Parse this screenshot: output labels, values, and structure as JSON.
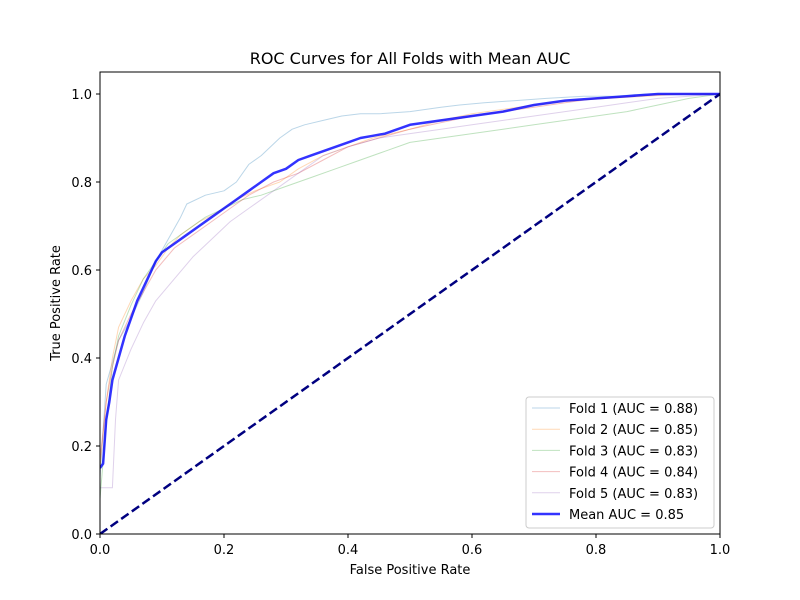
{
  "chart_data": {
    "type": "line",
    "title": "ROC Curves for All Folds with Mean AUC",
    "xlabel": "False Positive Rate",
    "ylabel": "True Positive Rate",
    "xlim": [
      0.0,
      1.0
    ],
    "ylim": [
      0.0,
      1.05
    ],
    "xticks": [
      "0.0",
      "0.2",
      "0.4",
      "0.6",
      "0.8",
      "1.0"
    ],
    "xtick_values": [
      0.0,
      0.2,
      0.4,
      0.6,
      0.8,
      1.0
    ],
    "yticks": [
      "0.0",
      "0.2",
      "0.4",
      "0.6",
      "0.8",
      "1.0"
    ],
    "ytick_values": [
      0.0,
      0.2,
      0.4,
      0.6,
      0.8,
      1.0
    ],
    "grid": false,
    "legend_position": "lower-right",
    "series": [
      {
        "name": "Fold 1 (AUC = 0.88)",
        "color": "#1f77b4",
        "opacity": 0.3,
        "width": 1,
        "x": [
          0.0,
          0.0,
          0.01,
          0.02,
          0.03,
          0.05,
          0.07,
          0.09,
          0.11,
          0.13,
          0.14,
          0.17,
          0.2,
          0.22,
          0.24,
          0.26,
          0.29,
          0.31,
          0.33,
          0.36,
          0.39,
          0.42,
          0.45,
          0.5,
          0.55,
          0.58,
          0.62,
          0.67,
          0.72,
          0.78,
          0.83,
          0.88,
          0.94,
          1.0
        ],
        "y": [
          0.0,
          0.13,
          0.34,
          0.39,
          0.44,
          0.49,
          0.55,
          0.62,
          0.67,
          0.72,
          0.75,
          0.77,
          0.78,
          0.8,
          0.84,
          0.86,
          0.9,
          0.92,
          0.93,
          0.94,
          0.95,
          0.955,
          0.955,
          0.96,
          0.97,
          0.975,
          0.98,
          0.985,
          0.99,
          0.995,
          0.995,
          1.0,
          1.0,
          1.0
        ]
      },
      {
        "name": "Fold 2 (AUC = 0.85)",
        "color": "#ff7f0e",
        "opacity": 0.3,
        "width": 1,
        "x": [
          0.0,
          0.0,
          0.01,
          0.02,
          0.03,
          0.05,
          0.07,
          0.09,
          0.11,
          0.13,
          0.16,
          0.19,
          0.22,
          0.25,
          0.29,
          0.32,
          0.36,
          0.4,
          0.44,
          0.5,
          0.55,
          0.6,
          0.65,
          0.7,
          0.76,
          0.82,
          0.88,
          0.94,
          1.0
        ],
        "y": [
          0.0,
          0.15,
          0.3,
          0.4,
          0.47,
          0.53,
          0.58,
          0.61,
          0.65,
          0.68,
          0.71,
          0.73,
          0.76,
          0.78,
          0.8,
          0.83,
          0.86,
          0.88,
          0.9,
          0.92,
          0.94,
          0.955,
          0.965,
          0.975,
          0.985,
          0.99,
          0.995,
          1.0,
          1.0
        ]
      },
      {
        "name": "Fold 3 (AUC = 0.83)",
        "color": "#2ca02c",
        "opacity": 0.3,
        "width": 1,
        "x": [
          0.0,
          0.0,
          0.01,
          0.02,
          0.03,
          0.05,
          0.07,
          0.09,
          0.11,
          0.14,
          0.17,
          0.2,
          0.23,
          0.26,
          0.3,
          0.34,
          0.38,
          0.42,
          0.46,
          0.5,
          0.55,
          0.6,
          0.65,
          0.7,
          0.75,
          0.8,
          0.85,
          0.9,
          0.95,
          1.0
        ],
        "y": [
          0.0,
          0.08,
          0.25,
          0.38,
          0.45,
          0.52,
          0.58,
          0.62,
          0.66,
          0.69,
          0.72,
          0.74,
          0.76,
          0.77,
          0.79,
          0.81,
          0.83,
          0.85,
          0.87,
          0.89,
          0.9,
          0.91,
          0.92,
          0.93,
          0.94,
          0.95,
          0.96,
          0.975,
          0.99,
          1.0
        ]
      },
      {
        "name": "Fold 4 (AUC = 0.84)",
        "color": "#d62728",
        "opacity": 0.3,
        "width": 1,
        "x": [
          0.0,
          0.0,
          0.01,
          0.02,
          0.03,
          0.05,
          0.07,
          0.09,
          0.12,
          0.15,
          0.18,
          0.21,
          0.24,
          0.28,
          0.32,
          0.36,
          0.4,
          0.45,
          0.5,
          0.55,
          0.6,
          0.65,
          0.7,
          0.75,
          0.8,
          0.86,
          0.92,
          1.0
        ],
        "y": [
          0.0,
          0.17,
          0.3,
          0.38,
          0.44,
          0.5,
          0.55,
          0.6,
          0.65,
          0.68,
          0.71,
          0.74,
          0.77,
          0.8,
          0.82,
          0.85,
          0.88,
          0.9,
          0.92,
          0.935,
          0.95,
          0.96,
          0.97,
          0.98,
          0.99,
          0.995,
          1.0,
          1.0
        ]
      },
      {
        "name": "Fold 5 (AUC = 0.83)",
        "color": "#9467bd",
        "opacity": 0.3,
        "width": 1,
        "x": [
          0.0,
          0.0,
          0.02,
          0.025,
          0.03,
          0.05,
          0.07,
          0.09,
          0.12,
          0.15,
          0.18,
          0.21,
          0.24,
          0.28,
          0.32,
          0.36,
          0.4,
          0.45,
          0.5,
          0.55,
          0.6,
          0.65,
          0.7,
          0.75,
          0.8,
          0.85,
          0.9,
          0.95,
          1.0
        ],
        "y": [
          0.0,
          0.105,
          0.105,
          0.26,
          0.35,
          0.42,
          0.48,
          0.53,
          0.58,
          0.63,
          0.67,
          0.71,
          0.74,
          0.78,
          0.82,
          0.86,
          0.88,
          0.9,
          0.91,
          0.92,
          0.93,
          0.94,
          0.95,
          0.96,
          0.97,
          0.98,
          0.99,
          0.995,
          1.0
        ]
      },
      {
        "name": "Mean AUC = 0.85",
        "color": "#0000ff",
        "opacity": 0.8,
        "width": 2.5,
        "x": [
          0.0,
          0.005,
          0.01,
          0.015,
          0.02,
          0.03,
          0.04,
          0.05,
          0.06,
          0.07,
          0.08,
          0.09,
          0.1,
          0.12,
          0.14,
          0.16,
          0.18,
          0.2,
          0.22,
          0.24,
          0.26,
          0.28,
          0.3,
          0.32,
          0.34,
          0.36,
          0.38,
          0.4,
          0.42,
          0.44,
          0.46,
          0.48,
          0.5,
          0.55,
          0.6,
          0.65,
          0.7,
          0.75,
          0.8,
          0.85,
          0.9,
          0.95,
          1.0
        ],
        "y": [
          0.15,
          0.16,
          0.26,
          0.3,
          0.35,
          0.4,
          0.45,
          0.49,
          0.53,
          0.56,
          0.59,
          0.62,
          0.64,
          0.66,
          0.68,
          0.7,
          0.72,
          0.74,
          0.76,
          0.78,
          0.8,
          0.82,
          0.83,
          0.85,
          0.86,
          0.87,
          0.88,
          0.89,
          0.9,
          0.905,
          0.91,
          0.92,
          0.93,
          0.94,
          0.95,
          0.96,
          0.975,
          0.985,
          0.99,
          0.995,
          1.0,
          1.0,
          1.0
        ]
      },
      {
        "name": "",
        "color": "#000080",
        "opacity": 1.0,
        "width": 2.5,
        "dashed": true,
        "x": [
          0.0,
          1.0
        ],
        "y": [
          0.0,
          1.0
        ]
      }
    ]
  }
}
